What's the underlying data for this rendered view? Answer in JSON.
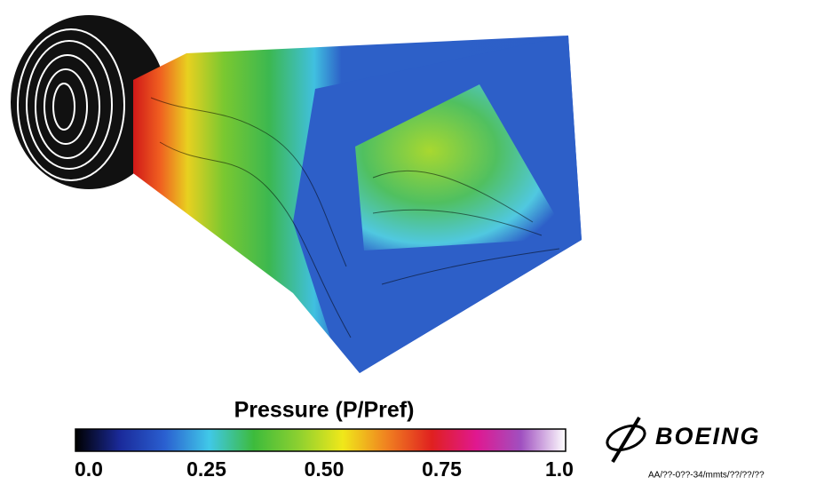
{
  "colorbar": {
    "title": "Pressure (P/Pref)",
    "lim": [
      0,
      1
    ],
    "ticks": [
      {
        "value": 0,
        "label": "0.0"
      },
      0.25,
      {
        "value": 0.5,
        "label": "0.50"
      },
      0.75,
      {
        "value": 1,
        "label": "1.0"
      }
    ],
    "colors": [
      "#000000",
      "#1a2a9a",
      "#2a5fd0",
      "#40c8e8",
      "#3dbb3c",
      "#8cd030",
      "#f0e81a",
      "#f08020",
      "#e02020",
      "#e01890",
      "#a050c0",
      "#ffffff"
    ]
  },
  "logo": {
    "text": "BOEING",
    "code": "AA/??-0??-34/mmts/??/??/??"
  }
}
